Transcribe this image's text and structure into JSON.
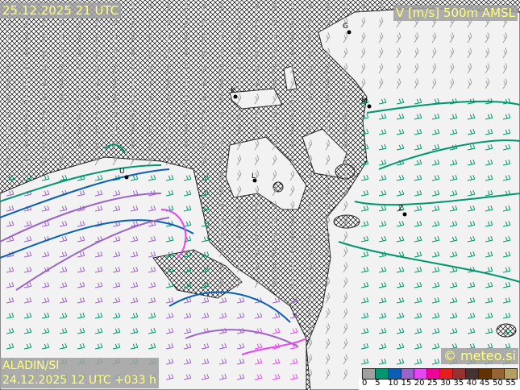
{
  "valid_time": "25.12.2025 21 UTC",
  "field_title": "V [m/s] 500m AMSL",
  "model": "ALADIN/SI",
  "run_info": "24.12.2025 12 UTC +033 h",
  "copyright": "© meteo.si",
  "legend": {
    "ticks": [
      "0",
      "5",
      "10",
      "15",
      "20",
      "25",
      "30",
      "35",
      "40",
      "45",
      "50",
      "55"
    ],
    "colors": [
      "#a0a0a0",
      "#00966e",
      "#0a5fb4",
      "#9b64c8",
      "#e646f0",
      "#f00096",
      "#e61e1e",
      "#963232",
      "#463232",
      "#643200",
      "#966432",
      "#b4a064"
    ]
  },
  "cities": [
    "G",
    "K",
    "M",
    "L",
    "Z",
    "U"
  ]
}
